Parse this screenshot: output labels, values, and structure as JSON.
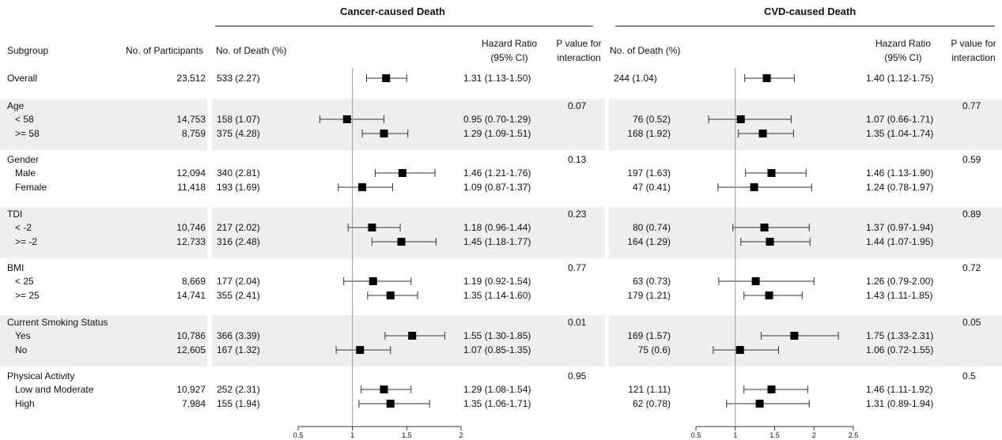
{
  "headers": {
    "cancer_title": "Cancer-caused Death",
    "cvd_title": "CVD-caused Death",
    "subgroup": "Subgroup",
    "participants": "No. of Participants",
    "cancer_deaths": "No. of Death (%)",
    "cancer_hr_line1": "Hazard Ratio",
    "cancer_hr_line2": "(95% CI)",
    "cancer_p_line1": "P value for",
    "cancer_p_line2": "interaction",
    "cvd_deaths": "No. of Death (%)",
    "cvd_hr_line1": "Hazard Ratio",
    "cvd_hr_line2": "(95% CI)",
    "cvd_p_line1": "P value for",
    "cvd_p_line2": "interaction"
  },
  "groups": [
    {
      "label": "Overall",
      "shaded": false,
      "cancer_p": "",
      "cvd_p": "",
      "rows": [
        {
          "label": "Overall",
          "participants": "23,512",
          "cancer_death": "533 (2.27)",
          "cancer_hr_text": "1.31 (1.13-1.50)",
          "cancer_hr": 1.31,
          "cancer_lo": 1.13,
          "cancer_hi": 1.5,
          "cvd_death": "244 (1.04)",
          "cvd_hr_text": "1.40 (1.12-1.75)",
          "cvd_hr": 1.4,
          "cvd_lo": 1.12,
          "cvd_hi": 1.75
        }
      ]
    },
    {
      "label": "Age",
      "shaded": true,
      "cancer_p": "0.07",
      "cvd_p": "0.77",
      "rows": [
        {
          "label": "< 58",
          "participants": "14,753",
          "cancer_death": "158 (1.07)",
          "cancer_hr_text": "0.95 (0.70-1.29)",
          "cancer_hr": 0.95,
          "cancer_lo": 0.7,
          "cancer_hi": 1.29,
          "cvd_death": "76 (0.52)",
          "cvd_hr_text": "1.07 (0.66-1.71)",
          "cvd_hr": 1.07,
          "cvd_lo": 0.66,
          "cvd_hi": 1.71
        },
        {
          "label": ">= 58",
          "participants": "8,759",
          "cancer_death": "375 (4.28)",
          "cancer_hr_text": "1.29 (1.09-1.51)",
          "cancer_hr": 1.29,
          "cancer_lo": 1.09,
          "cancer_hi": 1.51,
          "cvd_death": "168 (1.92)",
          "cvd_hr_text": "1.35 (1.04-1.74)",
          "cvd_hr": 1.35,
          "cvd_lo": 1.04,
          "cvd_hi": 1.74
        }
      ]
    },
    {
      "label": "Gender",
      "shaded": false,
      "cancer_p": "0.13",
      "cvd_p": "0.59",
      "rows": [
        {
          "label": "Male",
          "participants": "12,094",
          "cancer_death": "340 (2.81)",
          "cancer_hr_text": "1.46 (1.21-1.76)",
          "cancer_hr": 1.46,
          "cancer_lo": 1.21,
          "cancer_hi": 1.76,
          "cvd_death": "197 (1.63)",
          "cvd_hr_text": "1.46 (1.13-1.90)",
          "cvd_hr": 1.46,
          "cvd_lo": 1.13,
          "cvd_hi": 1.9
        },
        {
          "label": "Female",
          "participants": "11,418",
          "cancer_death": "193 (1.69)",
          "cancer_hr_text": "1.09 (0.87-1.37)",
          "cancer_hr": 1.09,
          "cancer_lo": 0.87,
          "cancer_hi": 1.37,
          "cvd_death": "47 (0.41)",
          "cvd_hr_text": "1.24 (0.78-1.97)",
          "cvd_hr": 1.24,
          "cvd_lo": 0.78,
          "cvd_hi": 1.97
        }
      ]
    },
    {
      "label": "TDI",
      "shaded": true,
      "cancer_p": "0.23",
      "cvd_p": "0.89",
      "rows": [
        {
          "label": "< -2",
          "participants": "10,746",
          "cancer_death": "217 (2.02)",
          "cancer_hr_text": "1.18 (0.96-1.44)",
          "cancer_hr": 1.18,
          "cancer_lo": 0.96,
          "cancer_hi": 1.44,
          "cvd_death": "80 (0.74)",
          "cvd_hr_text": "1.37 (0.97-1.94)",
          "cvd_hr": 1.37,
          "cvd_lo": 0.97,
          "cvd_hi": 1.94
        },
        {
          "label": ">= -2",
          "participants": "12,733",
          "cancer_death": "316 (2.48)",
          "cancer_hr_text": "1.45 (1.18-1.77)",
          "cancer_hr": 1.45,
          "cancer_lo": 1.18,
          "cancer_hi": 1.77,
          "cvd_death": "164 (1.29)",
          "cvd_hr_text": "1.44 (1.07-1.95)",
          "cvd_hr": 1.44,
          "cvd_lo": 1.07,
          "cvd_hi": 1.95
        }
      ]
    },
    {
      "label": "BMI",
      "shaded": false,
      "cancer_p": "0.77",
      "cvd_p": "0.72",
      "rows": [
        {
          "label": "< 25",
          "participants": "8,669",
          "cancer_death": "177 (2.04)",
          "cancer_hr_text": "1.19 (0.92-1.54)",
          "cancer_hr": 1.19,
          "cancer_lo": 0.92,
          "cancer_hi": 1.54,
          "cvd_death": "63 (0.73)",
          "cvd_hr_text": "1.26 (0.79-2.00)",
          "cvd_hr": 1.26,
          "cvd_lo": 0.79,
          "cvd_hi": 2.0
        },
        {
          "label": ">= 25",
          "participants": "14,741",
          "cancer_death": "355 (2.41)",
          "cancer_hr_text": "1.35 (1.14-1.60)",
          "cancer_hr": 1.35,
          "cancer_lo": 1.14,
          "cancer_hi": 1.6,
          "cvd_death": "179 (1.21)",
          "cvd_hr_text": "1.43 (1.11-1.85)",
          "cvd_hr": 1.43,
          "cvd_lo": 1.11,
          "cvd_hi": 1.85
        }
      ]
    },
    {
      "label": "Current Smoking Status",
      "shaded": true,
      "cancer_p": "0.01",
      "cvd_p": "0.05",
      "rows": [
        {
          "label": "Yes",
          "participants": "10,786",
          "cancer_death": "366 (3.39)",
          "cancer_hr_text": "1.55 (1.30-1.85)",
          "cancer_hr": 1.55,
          "cancer_lo": 1.3,
          "cancer_hi": 1.85,
          "cvd_death": "169 (1.57)",
          "cvd_hr_text": "1.75 (1.33-2.31)",
          "cvd_hr": 1.75,
          "cvd_lo": 1.33,
          "cvd_hi": 2.31
        },
        {
          "label": "No",
          "participants": "12,605",
          "cancer_death": "167 (1.32)",
          "cancer_hr_text": "1.07 (0.85-1.35)",
          "cancer_hr": 1.07,
          "cancer_lo": 0.85,
          "cancer_hi": 1.35,
          "cvd_death": "75 (0.6)",
          "cvd_hr_text": "1.06 (0.72-1.55)",
          "cvd_hr": 1.06,
          "cvd_lo": 0.72,
          "cvd_hi": 1.55
        }
      ]
    },
    {
      "label": "Physical Activity",
      "shaded": false,
      "cancer_p": "0.95",
      "cvd_p": "0.5",
      "rows": [
        {
          "label": "Low and Moderate",
          "participants": "10,927",
          "cancer_death": "252 (2.31)",
          "cancer_hr_text": "1.29 (1.08-1.54)",
          "cancer_hr": 1.29,
          "cancer_lo": 1.08,
          "cancer_hi": 1.54,
          "cvd_death": "121 (1.11)",
          "cvd_hr_text": "1.46 (1.11-1.92)",
          "cvd_hr": 1.46,
          "cvd_lo": 1.11,
          "cvd_hi": 1.92
        },
        {
          "label": "High",
          "participants": "7,984",
          "cancer_death": "155 (1.94)",
          "cancer_hr_text": "1.35 (1.06-1.71)",
          "cancer_hr": 1.35,
          "cancer_lo": 1.06,
          "cancer_hi": 1.71,
          "cvd_death": "62 (0.78)",
          "cvd_hr_text": "1.31 (0.89-1.94)",
          "cvd_hr": 1.31,
          "cvd_lo": 0.89,
          "cvd_hi": 1.94
        }
      ]
    }
  ],
  "chart_data": [
    {
      "type": "forest",
      "title": "Cancer-caused Death",
      "reference_line": 1,
      "xlim": [
        0.5,
        2
      ],
      "xticks": [
        0.5,
        1,
        1.5,
        2
      ],
      "xtick_labels": [
        "0.5",
        "1",
        "1.5",
        "2"
      ],
      "categories": [
        "Overall",
        "< 58",
        ">= 58",
        "Male",
        "Female",
        "< -2",
        ">= -2",
        "< 25",
        ">= 25",
        "Yes",
        "No",
        "Low and Moderate",
        "High"
      ],
      "hr": [
        1.31,
        0.95,
        1.29,
        1.46,
        1.09,
        1.18,
        1.45,
        1.19,
        1.35,
        1.55,
        1.07,
        1.29,
        1.35
      ],
      "lower": [
        1.13,
        0.7,
        1.09,
        1.21,
        0.87,
        0.96,
        1.18,
        0.92,
        1.14,
        1.3,
        0.85,
        1.08,
        1.06
      ],
      "upper": [
        1.5,
        1.29,
        1.51,
        1.76,
        1.37,
        1.44,
        1.77,
        1.54,
        1.6,
        1.85,
        1.35,
        1.54,
        1.71
      ]
    },
    {
      "type": "forest",
      "title": "CVD-caused Death",
      "reference_line": 1,
      "xlim": [
        0.5,
        2.5
      ],
      "xticks": [
        0.5,
        1,
        1.5,
        2,
        2.5
      ],
      "xtick_labels": [
        "0.5",
        "1",
        "1.5",
        "2",
        "2.5"
      ],
      "categories": [
        "Overall",
        "< 58",
        ">= 58",
        "Male",
        "Female",
        "< -2",
        ">= -2",
        "< 25",
        ">= 25",
        "Yes",
        "No",
        "Low and Moderate",
        "High"
      ],
      "hr": [
        1.4,
        1.07,
        1.35,
        1.46,
        1.24,
        1.37,
        1.44,
        1.26,
        1.43,
        1.75,
        1.06,
        1.46,
        1.31
      ],
      "lower": [
        1.12,
        0.66,
        1.04,
        1.13,
        0.78,
        0.97,
        1.07,
        0.79,
        1.11,
        1.33,
        0.72,
        1.11,
        0.89
      ],
      "upper": [
        1.75,
        1.71,
        1.74,
        1.9,
        1.97,
        1.94,
        1.95,
        2.0,
        1.85,
        2.31,
        1.55,
        1.92,
        1.94
      ]
    }
  ]
}
